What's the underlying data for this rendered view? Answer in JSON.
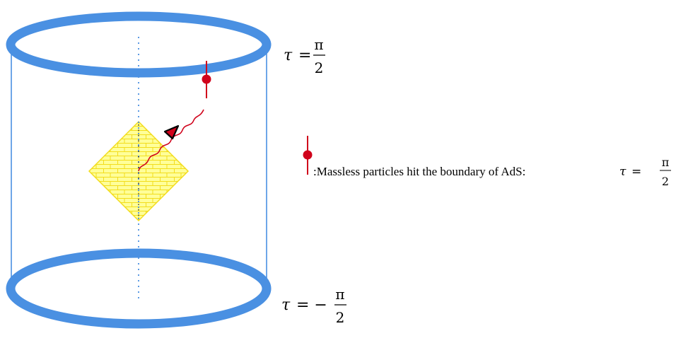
{
  "labels": {
    "top_tau": "τ",
    "top_eq": "=",
    "top_num": "π",
    "top_den": "2",
    "bottom_tau": "τ",
    "bottom_eq": "= −",
    "bottom_num": "π",
    "bottom_den": "2"
  },
  "legend": {
    "text": ":Massless particles hit the boundary of AdS:",
    "tau": "τ",
    "eq": "=",
    "num": "π",
    "den": "2"
  },
  "colors": {
    "boundary": "#4a90e2",
    "side": "#4a90e2",
    "axis": "#4a90e2",
    "diamond_fill": "#ffff99",
    "diamond_line": "#f2dc1c",
    "particle": "#d0021b",
    "arrow_head": "#000000"
  }
}
